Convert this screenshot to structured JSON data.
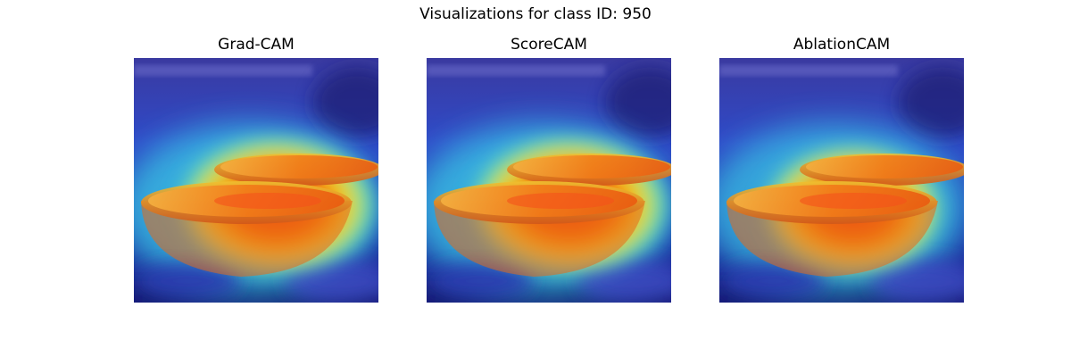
{
  "figure": {
    "title": "Visualizations for class ID: 950"
  },
  "panels": [
    {
      "title": "Grad-CAM",
      "image_description": "orange-halves-cam-heatmap"
    },
    {
      "title": "ScoreCAM",
      "image_description": "orange-halves-cam-heatmap"
    },
    {
      "title": "AblationCAM",
      "image_description": "orange-halves-cam-heatmap"
    }
  ],
  "colors": {
    "heat_low": "#1a1aa8",
    "heat_mid": "#38d6e8",
    "heat_warm": "#f2e020",
    "heat_high": "#f24a10",
    "background": "#ffffff"
  }
}
